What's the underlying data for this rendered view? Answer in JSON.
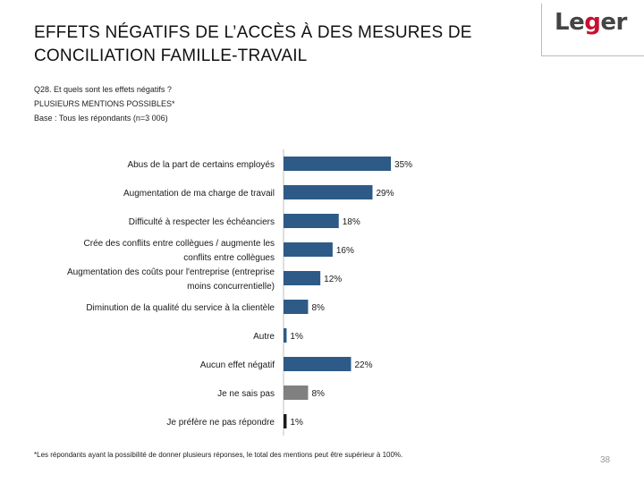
{
  "header": {
    "title_line1": "EFFETS NÉGATIFS DE L’ACCÈS À DES MESURES DE",
    "title_line2": "CONCILIATION FAMILLE-TRAVAIL",
    "logo_text_a": "Le",
    "logo_text_g": "g",
    "logo_text_b": "er"
  },
  "question": {
    "line1": "Q28. Et quels sont les effets négatifs ?",
    "line2": "PLUSIEURS MENTIONS POSSIBLES*",
    "line3": "Base : Tous les répondants (n=3 006)"
  },
  "chart_data": {
    "type": "bar",
    "orientation": "horizontal",
    "categories": [
      [
        "Abus de la part de certains employés"
      ],
      [
        "Augmentation de ma charge de travail"
      ],
      [
        "Difficulté à respecter les échéanciers"
      ],
      [
        "Crée des conflits entre collègues / augmente les",
        "conflits entre collègues"
      ],
      [
        "Augmentation des coûts pour l'entreprise (entreprise",
        "moins concurrentielle)"
      ],
      [
        "Diminution de la qualité du service à la clientèle"
      ],
      [
        "Autre"
      ],
      [
        "Aucun effet négatif"
      ],
      [
        "Je ne sais pas"
      ],
      [
        "Je préfère ne pas répondre"
      ]
    ],
    "values": [
      35,
      29,
      18,
      16,
      12,
      8,
      1,
      22,
      8,
      1
    ],
    "value_labels": [
      "35%",
      "29%",
      "18%",
      "16%",
      "12%",
      "8%",
      "1%",
      "22%",
      "8%",
      "1%"
    ],
    "bar_colors": [
      "#2e5a88",
      "#2e5a88",
      "#2e5a88",
      "#2e5a88",
      "#2e5a88",
      "#2e5a88",
      "#2e5a88",
      "#2e5a88",
      "#808080",
      "#1a1a1a"
    ],
    "xlim": [
      0,
      35
    ],
    "unit": "%"
  },
  "footnote": "*Les répondants ayant la possibilité de donner plusieurs réponses, le total des mentions peut être supérieur à 100%.",
  "page_number": "38"
}
